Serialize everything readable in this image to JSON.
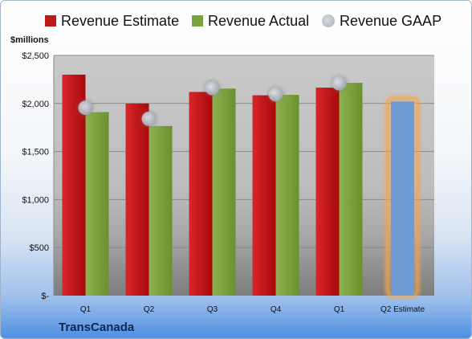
{
  "legend": {
    "estimate": "Revenue Estimate",
    "actual": "Revenue Actual",
    "gaap": "Revenue GAAP"
  },
  "unit_label": "$millions",
  "company": "TransCanada",
  "colors": {
    "estimate": "#c0191b",
    "actual": "#7aa33b",
    "gaap": "#b3b6be",
    "q2_estimate": "#6f9ad6",
    "q2_estimate_halo": "#f5a54a"
  },
  "chart_data": {
    "type": "bar",
    "categories": [
      "Q1",
      "Q2",
      "Q3",
      "Q4",
      "Q1",
      "Q2 Estimate"
    ],
    "series": [
      {
        "name": "Revenue Estimate",
        "values": [
          2300,
          2000,
          2120,
          2085,
          2165,
          null
        ]
      },
      {
        "name": "Revenue Actual",
        "values": [
          1910,
          1765,
          2155,
          2090,
          2215,
          null
        ]
      },
      {
        "name": "Revenue GAAP",
        "values": [
          1955,
          1840,
          2160,
          2095,
          2210,
          null
        ]
      },
      {
        "name": "Q2 Estimate",
        "values": [
          null,
          null,
          null,
          null,
          null,
          2020
        ]
      }
    ],
    "ylabel": "$millions",
    "yticks": [
      "$-",
      "$500",
      "$1,000",
      "$1,500",
      "$2,000",
      "$2,500"
    ],
    "ytick_values": [
      0,
      500,
      1000,
      1500,
      2000,
      2500
    ],
    "ylim": [
      0,
      2500
    ],
    "grid": true,
    "legend_position": "top"
  }
}
